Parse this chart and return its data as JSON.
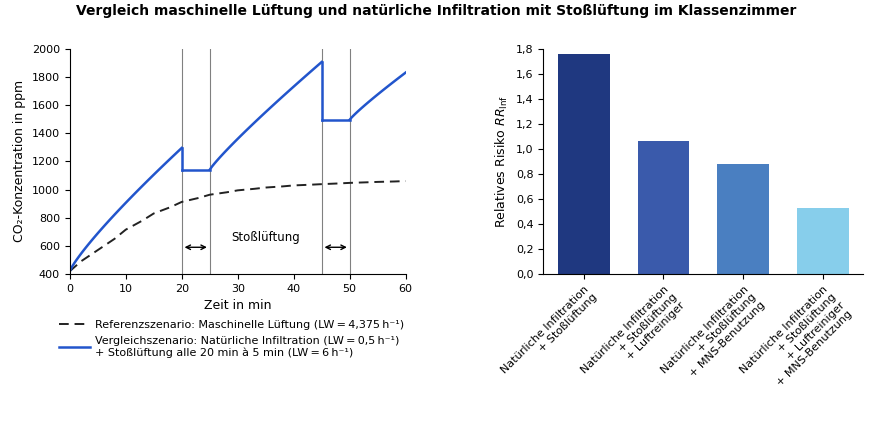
{
  "title": "Vergleich maschinelle Lüftung und natürliche Infiltration mit Stoßlüftung im Klassenzimmer",
  "left": {
    "xlabel": "Zeit in min",
    "ylabel": "CO₂-Konzentration in ppm",
    "xlim": [
      0,
      60
    ],
    "ylim": [
      400,
      2000
    ],
    "yticks": [
      400,
      600,
      800,
      1000,
      1200,
      1400,
      1600,
      1800,
      2000
    ],
    "xticks": [
      0,
      10,
      20,
      30,
      40,
      50,
      60
    ],
    "vlines": [
      20,
      25,
      45,
      50
    ],
    "stosslüftung_label": "Stoßlüftung",
    "ref_color": "#222222",
    "comp_color": "#2255cc",
    "ref_x": [
      0,
      2,
      5,
      8,
      10,
      13,
      15,
      18,
      20,
      23,
      25,
      28,
      30,
      33,
      35,
      38,
      40,
      43,
      45,
      48,
      50,
      53,
      55,
      58,
      60
    ],
    "ref_y": [
      420,
      490,
      570,
      650,
      715,
      780,
      830,
      875,
      912,
      940,
      963,
      980,
      994,
      1005,
      1014,
      1022,
      1029,
      1034,
      1038,
      1043,
      1047,
      1051,
      1054,
      1057,
      1060
    ],
    "legend_ref": "Referenzszenario: Maschinelle Lüftung (LW = 4,375 h⁻¹)",
    "legend_comp_line1": "Vergleichszenario: Natürliche Infiltration (LW = 0,5 h⁻¹)",
    "legend_comp_line2": "+ Stoßlüftung alle 20 min à 5 min (LW = 6 h⁻¹)"
  },
  "right": {
    "ylabel": "Relatives Risiko ",
    "ylabel_italic": "RR",
    "ylabel_sub": "Inf",
    "ylim": [
      0,
      1.8
    ],
    "yticks": [
      0.0,
      0.2,
      0.4,
      0.6,
      0.8,
      1.0,
      1.2,
      1.4,
      1.6,
      1.8
    ],
    "categories": [
      "Natürliche Infiltration\n+ Stoßlüftung",
      "Natürliche Infiltration\n+ Stoßlüftung\n+ Luftreiniger",
      "Natürliche Infiltration\n+ Stoßlüftung\n+ MNS-Benutzung",
      "Natürliche Infiltration\n+ Stoßlüftung\n+ Luftreiniger\n+ MNS-Benutzung"
    ],
    "values": [
      1.76,
      1.06,
      0.88,
      0.53
    ],
    "bar_colors": [
      "#1f3880",
      "#3a5aab",
      "#4a7fc1",
      "#87ceeb"
    ]
  }
}
